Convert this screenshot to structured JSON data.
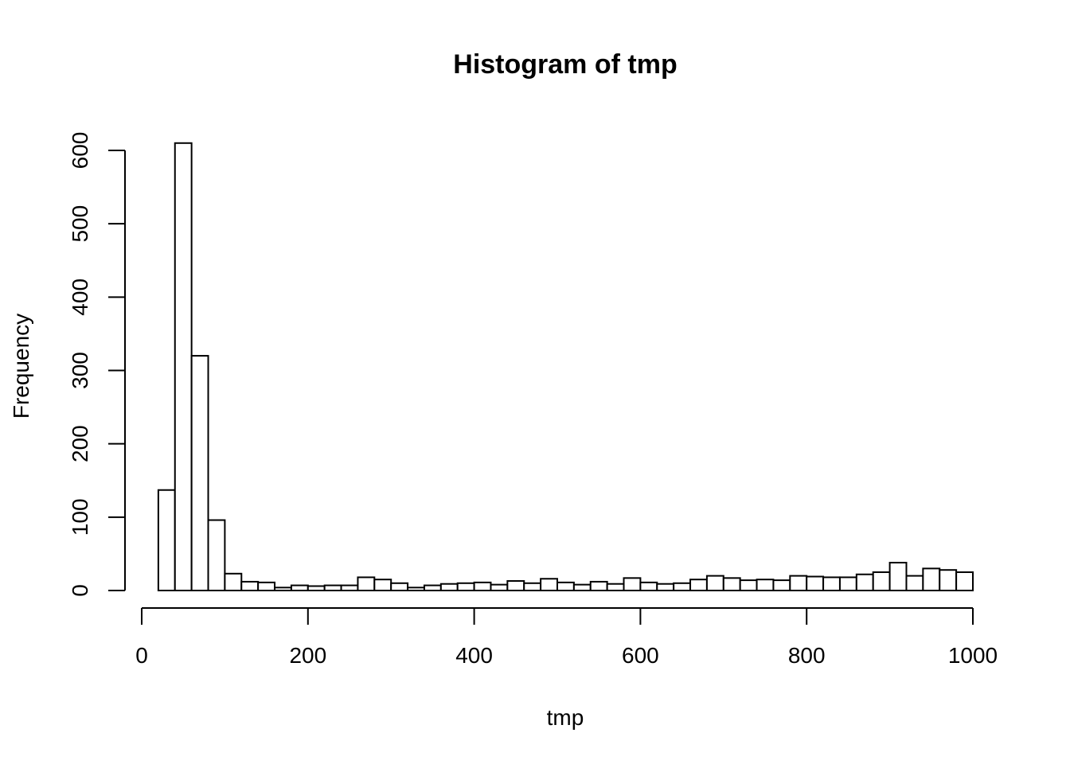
{
  "chart_data": {
    "type": "bar",
    "title": "Histogram of tmp",
    "xlabel": "tmp",
    "ylabel": "Frequency",
    "bin_width": 20,
    "bin_start": 20,
    "values": [
      137,
      610,
      320,
      96,
      23,
      12,
      11,
      4,
      7,
      6,
      7,
      7,
      18,
      15,
      10,
      4,
      7,
      9,
      10,
      11,
      8,
      13,
      10,
      16,
      11,
      8,
      12,
      9,
      17,
      11,
      9,
      10,
      15,
      20,
      17,
      14,
      15,
      14,
      20,
      19,
      18,
      18,
      22,
      25,
      38,
      20,
      30,
      28,
      25
    ],
    "xlim": [
      0,
      1000
    ],
    "ylim": [
      0,
      600
    ],
    "x_ticks": [
      "0",
      "200",
      "400",
      "600",
      "800",
      "1000"
    ],
    "y_ticks": [
      "0",
      "100",
      "200",
      "300",
      "400",
      "500",
      "600"
    ]
  }
}
